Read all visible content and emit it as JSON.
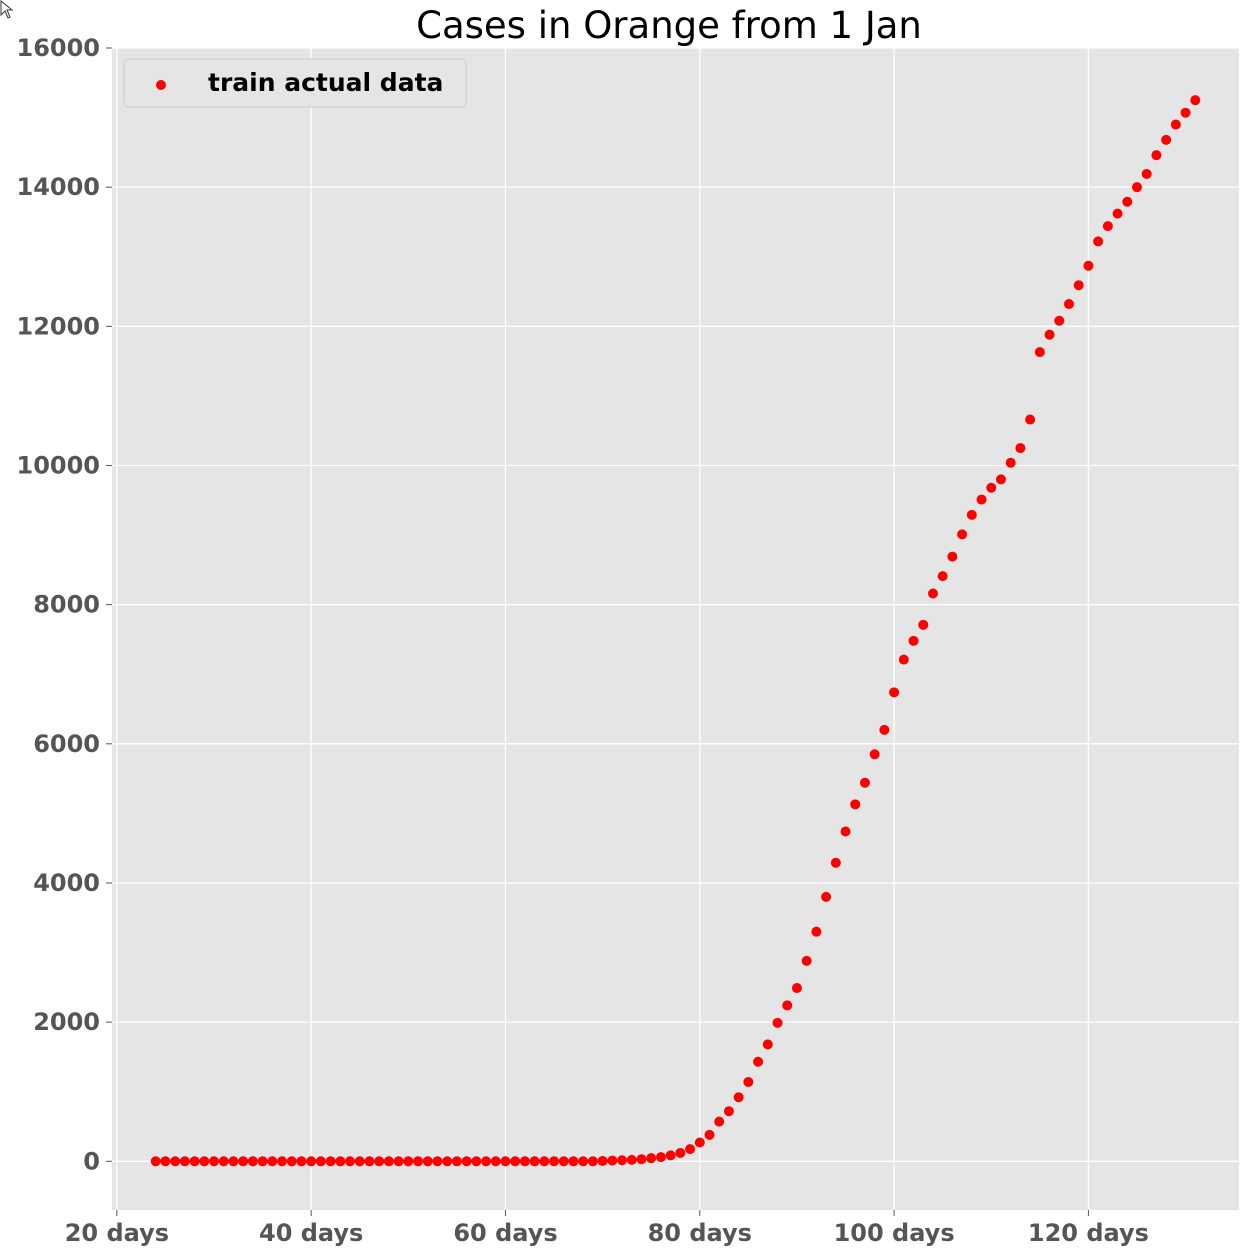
{
  "chart_data": {
    "type": "scatter",
    "title": "Cases in Orange from 1 Jan",
    "xlabel": "",
    "ylabel": "",
    "xlim": [
      19.5,
      135.5
    ],
    "ylim": [
      -700,
      16000
    ],
    "x_ticks": [
      {
        "value": 20,
        "label": "20 days"
      },
      {
        "value": 40,
        "label": "40 days"
      },
      {
        "value": 60,
        "label": "60 days"
      },
      {
        "value": 80,
        "label": "80 days"
      },
      {
        "value": 100,
        "label": "100 days"
      },
      {
        "value": 120,
        "label": "120 days"
      }
    ],
    "y_ticks": [
      {
        "value": 0,
        "label": "0"
      },
      {
        "value": 2000,
        "label": "2000"
      },
      {
        "value": 4000,
        "label": "4000"
      },
      {
        "value": 6000,
        "label": "6000"
      },
      {
        "value": 8000,
        "label": "8000"
      },
      {
        "value": 10000,
        "label": "10000"
      },
      {
        "value": 12000,
        "label": "12000"
      },
      {
        "value": 14000,
        "label": "14000"
      },
      {
        "value": 16000,
        "label": "16000"
      }
    ],
    "grid": true,
    "legend_position": "top-left",
    "series": [
      {
        "name": "train actual data",
        "color": "#ff0000",
        "x": [
          24,
          25,
          26,
          27,
          28,
          29,
          30,
          31,
          32,
          33,
          34,
          35,
          36,
          37,
          38,
          39,
          40,
          41,
          42,
          43,
          44,
          45,
          46,
          47,
          48,
          49,
          50,
          51,
          52,
          53,
          54,
          55,
          56,
          57,
          58,
          59,
          60,
          61,
          62,
          63,
          64,
          65,
          66,
          67,
          68,
          69,
          70,
          71,
          72,
          73,
          74,
          75,
          76,
          77,
          78,
          79,
          80,
          81,
          82,
          83,
          84,
          85,
          86,
          87,
          88,
          89,
          90,
          91,
          92,
          93,
          94,
          95,
          96,
          97,
          98,
          99,
          100,
          101,
          102,
          103,
          104,
          105,
          106,
          107,
          108,
          109,
          110,
          111,
          112,
          113,
          114,
          115,
          116,
          117,
          118,
          119,
          120,
          121,
          122,
          123,
          124,
          125,
          126,
          127,
          128,
          129,
          130,
          131
        ],
        "y": [
          0,
          0,
          0,
          0,
          0,
          0,
          0,
          0,
          0,
          0,
          0,
          0,
          0,
          0,
          0,
          0,
          0,
          0,
          0,
          0,
          0,
          0,
          0,
          0,
          0,
          0,
          0,
          0,
          0,
          0,
          0,
          0,
          0,
          0,
          0,
          0,
          0,
          0,
          0,
          0,
          0,
          0,
          0,
          0,
          0,
          0,
          5,
          10,
          15,
          20,
          30,
          45,
          60,
          85,
          120,
          175,
          270,
          380,
          570,
          720,
          920,
          1140,
          1430,
          1680,
          1990,
          2240,
          2490,
          2880,
          3300,
          3800,
          4290,
          4740,
          5130,
          5440,
          5850,
          6200,
          6740,
          7210,
          7480,
          7710,
          8160,
          8410,
          8690,
          9010,
          9290,
          9510,
          9680,
          9800,
          10040,
          10250,
          10660,
          11630,
          11880,
          12080,
          12320,
          12590,
          12870,
          13220,
          13440,
          13620,
          13790,
          14000,
          14190,
          14460,
          14680,
          14900,
          15070,
          15250
        ]
      }
    ]
  },
  "colors": {
    "plot_background": "#e5e5e5",
    "grid": "#ffffff",
    "marker": "#ff0000",
    "tick_label": "#555555"
  },
  "icons": {
    "cursor": "mouse-pointer-icon"
  }
}
